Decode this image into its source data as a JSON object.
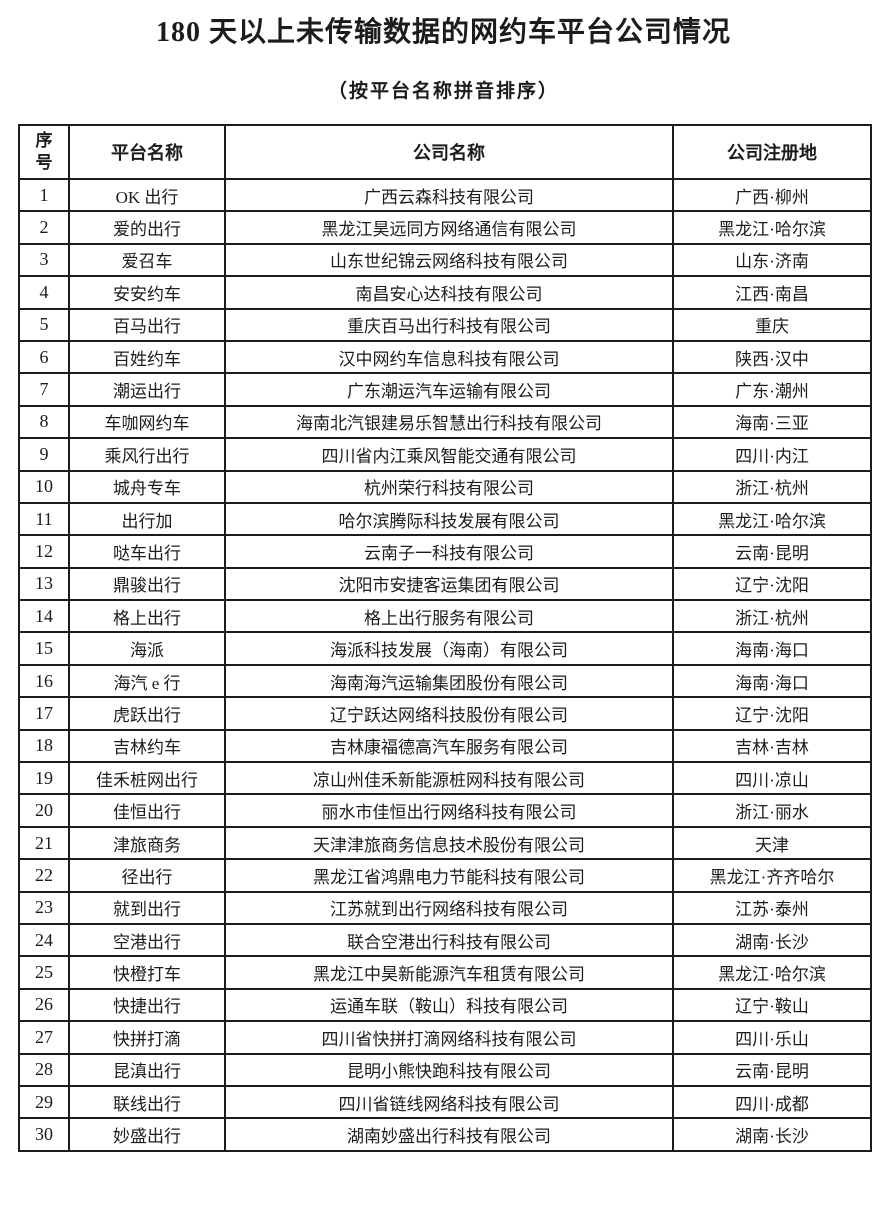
{
  "title": "180 天以上未传输数据的网约车平台公司情况",
  "subtitle": "（按平台名称拼音排序）",
  "table": {
    "headers": [
      "序\n号",
      "平台名称",
      "公司名称",
      "公司注册地"
    ],
    "rows": [
      [
        "1",
        "OK 出行",
        "广西云森科技有限公司",
        "广西·柳州"
      ],
      [
        "2",
        "爱的出行",
        "黑龙江昊远同方网络通信有限公司",
        "黑龙江·哈尔滨"
      ],
      [
        "3",
        "爱召车",
        "山东世纪锦云网络科技有限公司",
        "山东·济南"
      ],
      [
        "4",
        "安安约车",
        "南昌安心达科技有限公司",
        "江西·南昌"
      ],
      [
        "5",
        "百马出行",
        "重庆百马出行科技有限公司",
        "重庆"
      ],
      [
        "6",
        "百姓约车",
        "汉中网约车信息科技有限公司",
        "陕西·汉中"
      ],
      [
        "7",
        "潮运出行",
        "广东潮运汽车运输有限公司",
        "广东·潮州"
      ],
      [
        "8",
        "车咖网约车",
        "海南北汽银建易乐智慧出行科技有限公司",
        "海南·三亚"
      ],
      [
        "9",
        "乘风行出行",
        "四川省内江乘风智能交通有限公司",
        "四川·内江"
      ],
      [
        "10",
        "城舟专车",
        "杭州荣行科技有限公司",
        "浙江·杭州"
      ],
      [
        "11",
        "出行加",
        "哈尔滨腾际科技发展有限公司",
        "黑龙江·哈尔滨"
      ],
      [
        "12",
        "哒车出行",
        "云南子一科技有限公司",
        "云南·昆明"
      ],
      [
        "13",
        "鼎骏出行",
        "沈阳市安捷客运集团有限公司",
        "辽宁·沈阳"
      ],
      [
        "14",
        "格上出行",
        "格上出行服务有限公司",
        "浙江·杭州"
      ],
      [
        "15",
        "海派",
        "海派科技发展（海南）有限公司",
        "海南·海口"
      ],
      [
        "16",
        "海汽 e 行",
        "海南海汽运输集团股份有限公司",
        "海南·海口"
      ],
      [
        "17",
        "虎跃出行",
        "辽宁跃达网络科技股份有限公司",
        "辽宁·沈阳"
      ],
      [
        "18",
        "吉林约车",
        "吉林康福德高汽车服务有限公司",
        "吉林·吉林"
      ],
      [
        "19",
        "佳禾桩网出行",
        "凉山州佳禾新能源桩网科技有限公司",
        "四川·凉山"
      ],
      [
        "20",
        "佳恒出行",
        "丽水市佳恒出行网络科技有限公司",
        "浙江·丽水"
      ],
      [
        "21",
        "津旅商务",
        "天津津旅商务信息技术股份有限公司",
        "天津"
      ],
      [
        "22",
        "径出行",
        "黑龙江省鸿鼎电力节能科技有限公司",
        "黑龙江·齐齐哈尔"
      ],
      [
        "23",
        "就到出行",
        "江苏就到出行网络科技有限公司",
        "江苏·泰州"
      ],
      [
        "24",
        "空港出行",
        "联合空港出行科技有限公司",
        "湖南·长沙"
      ],
      [
        "25",
        "快橙打车",
        "黑龙江中昊新能源汽车租赁有限公司",
        "黑龙江·哈尔滨"
      ],
      [
        "26",
        "快捷出行",
        "运通车联（鞍山）科技有限公司",
        "辽宁·鞍山"
      ],
      [
        "27",
        "快拼打滴",
        "四川省快拼打滴网络科技有限公司",
        "四川·乐山"
      ],
      [
        "28",
        "昆滇出行",
        "昆明小熊快跑科技有限公司",
        "云南·昆明"
      ],
      [
        "29",
        "联线出行",
        "四川省链线网络科技有限公司",
        "四川·成都"
      ],
      [
        "30",
        "妙盛出行",
        "湖南妙盛出行科技有限公司",
        "湖南·长沙"
      ]
    ]
  }
}
